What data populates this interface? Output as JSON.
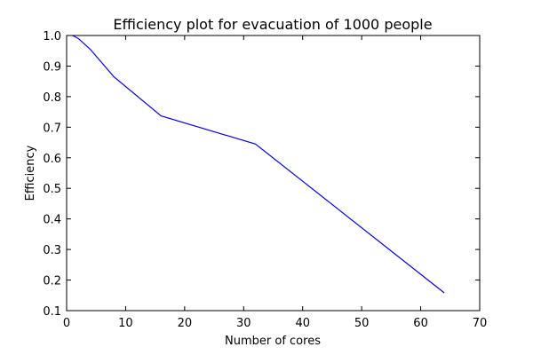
{
  "chart_data": {
    "type": "line",
    "title": "Efficiency plot for evacuation of 1000 people",
    "xlabel": "Number of cores",
    "ylabel": "Efficiency",
    "xlim": [
      0,
      70
    ],
    "ylim": [
      0.1,
      1.0
    ],
    "xticks": [
      "0",
      "10",
      "20",
      "30",
      "40",
      "50",
      "60",
      "70"
    ],
    "yticks": [
      "0.1",
      "0.2",
      "0.3",
      "0.4",
      "0.5",
      "0.6",
      "0.7",
      "0.8",
      "0.9",
      "1.0"
    ],
    "grid": false,
    "series": [
      {
        "color": "#0000ff",
        "x": [
          1,
          2,
          4,
          8,
          16,
          32,
          64
        ],
        "y": [
          1.0,
          0.99,
          0.955,
          0.865,
          0.737,
          0.645,
          0.158
        ]
      }
    ]
  }
}
